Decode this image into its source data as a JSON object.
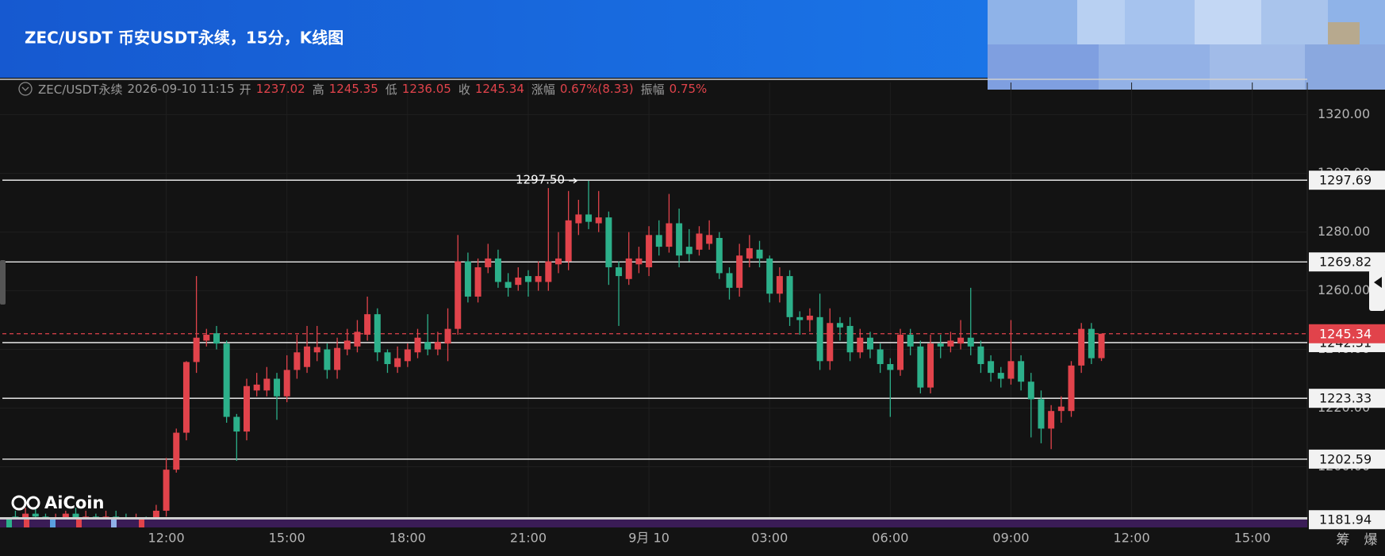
{
  "header": {
    "title": "ZEC/USDT 币安USDT永续，15分，K线图"
  },
  "info": {
    "symbol": "ZEC/USDT永续",
    "open_label": "开",
    "high_label": "高",
    "low_label": "低",
    "close_label": "收",
    "change_label": "涨幅",
    "change": "0.67%(8.33)",
    "amplitude_label": "振幅",
    "amplitude": "0.75%"
  },
  "logo": "AiCoin",
  "side_tabs": [
    "筹",
    "爆"
  ],
  "chart_data": {
    "type": "candlestick",
    "x": [
      "2026-09-09 08:15",
      "2026-09-09 08:30",
      "2026-09-09 08:45",
      "2026-09-09 09:00",
      "2026-09-09 09:15",
      "2026-09-09 09:30",
      "2026-09-09 09:45",
      "2026-09-09 10:00",
      "2026-09-09 10:15",
      "2026-09-09 10:30",
      "2026-09-09 10:45",
      "2026-09-09 11:00",
      "2026-09-09 11:15",
      "2026-09-09 11:30",
      "2026-09-09 11:45",
      "2026-09-09 12:00",
      "2026-09-09 12:15",
      "2026-09-09 12:30",
      "2026-09-09 12:45",
      "2026-09-09 13:00",
      "2026-09-09 13:15",
      "2026-09-09 13:30",
      "2026-09-09 13:45",
      "2026-09-09 14:00",
      "2026-09-09 14:15",
      "2026-09-09 14:30",
      "2026-09-09 14:45",
      "2026-09-09 15:00",
      "2026-09-09 15:15",
      "2026-09-09 15:30",
      "2026-09-09 15:45",
      "2026-09-09 16:00",
      "2026-09-09 16:15",
      "2026-09-09 16:30",
      "2026-09-09 16:45",
      "2026-09-09 17:00",
      "2026-09-09 17:15",
      "2026-09-09 17:30",
      "2026-09-09 17:45",
      "2026-09-09 18:00",
      "2026-09-09 18:15",
      "2026-09-09 18:30",
      "2026-09-09 18:45",
      "2026-09-09 19:00",
      "2026-09-09 19:15",
      "2026-09-09 19:30",
      "2026-09-09 19:45",
      "2026-09-09 20:00",
      "2026-09-09 20:15",
      "2026-09-09 20:30",
      "2026-09-09 20:45",
      "2026-09-09 21:00",
      "2026-09-09 21:15",
      "2026-09-09 21:30",
      "2026-09-09 21:45",
      "2026-09-09 22:00",
      "2026-09-09 22:15",
      "2026-09-09 22:30",
      "2026-09-09 22:45",
      "2026-09-09 23:00",
      "2026-09-09 23:15",
      "2026-09-09 23:30",
      "2026-09-09 23:45",
      "2026-09-10 00:00",
      "2026-09-10 00:15",
      "2026-09-10 00:30",
      "2026-09-10 00:45",
      "2026-09-10 01:00",
      "2026-09-10 01:15",
      "2026-09-10 01:30",
      "2026-09-10 01:45",
      "2026-09-10 02:00",
      "2026-09-10 02:15",
      "2026-09-10 02:30",
      "2026-09-10 02:45",
      "2026-09-10 03:00",
      "2026-09-10 03:15",
      "2026-09-10 03:30",
      "2026-09-10 03:45",
      "2026-09-10 04:00",
      "2026-09-10 04:15",
      "2026-09-10 04:30",
      "2026-09-10 04:45",
      "2026-09-10 05:00",
      "2026-09-10 05:15",
      "2026-09-10 05:30",
      "2026-09-10 05:45",
      "2026-09-10 06:00",
      "2026-09-10 06:15",
      "2026-09-10 06:30",
      "2026-09-10 06:45",
      "2026-09-10 07:00",
      "2026-09-10 07:15",
      "2026-09-10 07:30",
      "2026-09-10 07:45",
      "2026-09-10 08:00",
      "2026-09-10 08:15",
      "2026-09-10 08:30",
      "2026-09-10 08:45",
      "2026-09-10 09:00",
      "2026-09-10 09:15",
      "2026-09-10 09:30",
      "2026-09-10 09:45",
      "2026-09-10 10:00",
      "2026-09-10 10:15",
      "2026-09-10 10:30",
      "2026-09-10 10:45",
      "2026-09-10 11:00",
      "2026-09-10 11:15"
    ],
    "open": [
      1183,
      1182,
      1184,
      1183,
      1181,
      1182,
      1184,
      1182,
      1183,
      1181,
      1183,
      1182,
      1181,
      1182,
      1181,
      1185,
      1199,
      1211.6,
      1235.7,
      1243,
      1245.5,
      1242,
      1217,
      1212,
      1226,
      1226,
      1230,
      1224,
      1233,
      1234,
      1239,
      1240,
      1233,
      1240,
      1241,
      1245,
      1252,
      1239,
      1234,
      1236,
      1239,
      1242.5,
      1240,
      1242,
      1247,
      1270,
      1258,
      1268,
      1271,
      1263,
      1262,
      1265,
      1263,
      1263,
      1269,
      1270,
      1283,
      1286,
      1283,
      1285,
      1268,
      1264,
      1269,
      1268,
      1279,
      1275,
      1283,
      1275,
      1274,
      1276,
      1278,
      1266,
      1261,
      1271,
      1274,
      1271,
      1259,
      1265,
      1251,
      1250,
      1251,
      1236,
      1249,
      1248,
      1239,
      1244,
      1240,
      1235,
      1233,
      1245,
      1241,
      1227,
      1242,
      1241,
      1242,
      1244,
      1241,
      1236,
      1232,
      1230,
      1236,
      1229,
      1223,
      1213,
      1219,
      1219,
      1234.5,
      1247,
      1237.02
    ],
    "high": [
      1185,
      1186,
      1186,
      1184,
      1184,
      1185,
      1186,
      1185,
      1184,
      1185,
      1185,
      1184,
      1184,
      1183,
      1187,
      1203,
      1213,
      1236,
      1265,
      1247,
      1248,
      1243,
      1218,
      1230,
      1232,
      1234,
      1232,
      1238,
      1245,
      1248,
      1248,
      1242,
      1244,
      1247,
      1250,
      1258,
      1254,
      1240,
      1241,
      1242,
      1247,
      1252,
      1246,
      1254,
      1279,
      1273,
      1271,
      1276,
      1274,
      1266,
      1268,
      1267,
      1270,
      1295,
      1280,
      1294,
      1291,
      1297.5,
      1294,
      1287,
      1270,
      1280,
      1275,
      1282,
      1284,
      1293,
      1288,
      1281,
      1282,
      1284,
      1280,
      1268,
      1276,
      1279,
      1277,
      1272,
      1268,
      1267,
      1253,
      1254,
      1259,
      1254,
      1251,
      1251,
      1247,
      1246,
      1242,
      1237,
      1247,
      1247,
      1243,
      1245,
      1245,
      1246,
      1250,
      1261,
      1243,
      1238,
      1234,
      1250,
      1238,
      1232,
      1226,
      1221,
      1224,
      1236,
      1249,
      1249,
      1245.35
    ],
    "low": [
      1180,
      1181,
      1181,
      1179.8,
      1180,
      1181,
      1181,
      1180,
      1180,
      1180,
      1181,
      1180,
      1180,
      1180,
      1180,
      1183,
      1198,
      1209,
      1232,
      1241,
      1240,
      1215,
      1202,
      1209,
      1224,
      1224,
      1216,
      1222,
      1230,
      1232,
      1236,
      1230,
      1230,
      1238,
      1239,
      1243,
      1236,
      1232,
      1232,
      1234,
      1237,
      1238,
      1238,
      1236,
      1245,
      1256,
      1256,
      1266,
      1261,
      1258,
      1260,
      1258,
      1260,
      1260,
      1266,
      1267,
      1279,
      1281,
      1280,
      1262,
      1248,
      1262,
      1266,
      1265,
      1272,
      1273,
      1268,
      1270,
      1272,
      1274,
      1264,
      1257,
      1258,
      1268,
      1268,
      1256,
      1256,
      1248,
      1245,
      1246,
      1233,
      1233,
      1243,
      1236,
      1237,
      1237,
      1232,
      1217,
      1231,
      1238,
      1225,
      1225,
      1237,
      1239,
      1240,
      1238,
      1232,
      1229,
      1227,
      1228,
      1226,
      1210,
      1208,
      1206,
      1215,
      1217,
      1232,
      1235,
      1236.05
    ],
    "close": [
      1182,
      1184,
      1183,
      1181,
      1182,
      1184,
      1182,
      1183,
      1181,
      1183,
      1182,
      1181,
      1182,
      1181,
      1185,
      1199,
      1211.6,
      1235.7,
      1244,
      1245,
      1242,
      1217,
      1212,
      1227.5,
      1228,
      1230,
      1224,
      1233,
      1239,
      1241,
      1240.8,
      1233,
      1240.5,
      1243,
      1246,
      1252,
      1239,
      1235,
      1237,
      1240,
      1244,
      1240,
      1242.5,
      1247,
      1270,
      1258,
      1268,
      1271,
      1263,
      1261,
      1264.5,
      1263,
      1265,
      1270,
      1271,
      1284,
      1286,
      1283.5,
      1285,
      1268,
      1265,
      1271,
      1271,
      1279,
      1275,
      1283,
      1272,
      1272.5,
      1279.5,
      1279,
      1266,
      1261,
      1272,
      1274.5,
      1271,
      1259,
      1265,
      1251,
      1250,
      1251.5,
      1236,
      1249,
      1247.5,
      1239,
      1244,
      1240,
      1235,
      1233,
      1245,
      1241,
      1227,
      1242,
      1241,
      1243,
      1244,
      1241,
      1235,
      1232,
      1230,
      1236,
      1229,
      1223,
      1213,
      1219,
      1220.5,
      1234.5,
      1247,
      1237,
      1245.34
    ],
    "up_color": "#e1434b",
    "down_color": "#2cb08a",
    "xlim": [
      "2026-09-09 07:52",
      "2026-09-10 16:22"
    ],
    "ylim": [
      1179.3,
      1331
    ],
    "xticks": [
      {
        "value": "2026-09-09 12:00",
        "label": "12:00"
      },
      {
        "value": "2026-09-09 15:00",
        "label": "15:00"
      },
      {
        "value": "2026-09-09 18:00",
        "label": "18:00"
      },
      {
        "value": "2026-09-09 21:00",
        "label": "21:00"
      },
      {
        "value": "2026-09-10 00:00",
        "label": "9月 10"
      },
      {
        "value": "2026-09-10 03:00",
        "label": "03:00"
      },
      {
        "value": "2026-09-10 06:00",
        "label": "06:00"
      },
      {
        "value": "2026-09-10 09:00",
        "label": "09:00"
      },
      {
        "value": "2026-09-10 12:00",
        "label": "12:00"
      },
      {
        "value": "2026-09-10 15:00",
        "label": "15:00"
      }
    ],
    "yticks": [
      {
        "value": 1200,
        "label": "1200.00"
      },
      {
        "value": 1220,
        "label": "1220.00"
      },
      {
        "value": 1240,
        "label": "1240.00"
      },
      {
        "value": 1260,
        "label": "1260.00"
      },
      {
        "value": 1280,
        "label": "1280.00"
      },
      {
        "value": 1300,
        "label": "1300.00"
      },
      {
        "value": 1320,
        "label": "1320.00"
      }
    ],
    "grid": true,
    "levels": [
      1297.69,
      1269.82,
      1242.31,
      1223.33,
      1202.59,
      1181.94
    ],
    "level_color": "#d8d8d8",
    "last_price": 1245.34,
    "last_price_color": "#e1434b",
    "annotation": {
      "x": "2026-09-09 22:30",
      "value": 1297.5,
      "label": "1297.50"
    }
  }
}
